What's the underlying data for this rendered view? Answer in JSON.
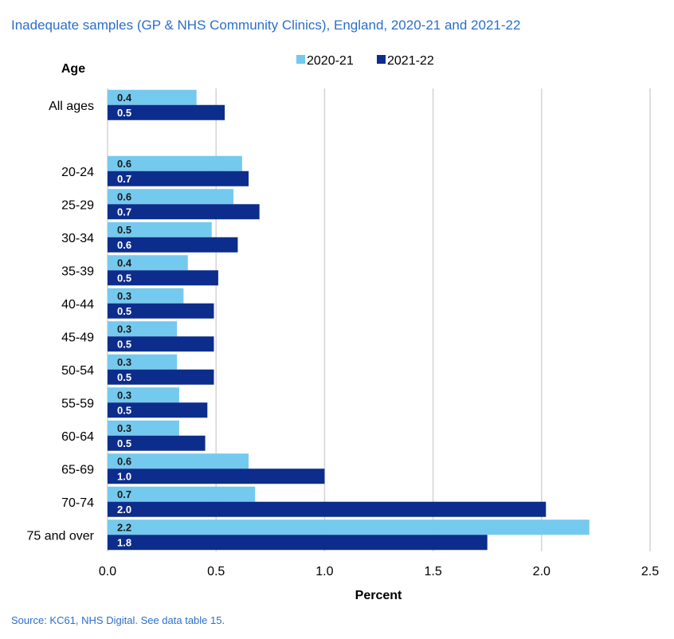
{
  "title": "Inadequate  samples (GP & NHS Community Clinics), England, 2020-21  and 2021-22",
  "source": "Source: KC61, NHS Digital. See data table 15.",
  "colors": {
    "series_2020_21": "#74c9ee",
    "series_2021_22": "#0d2d8c",
    "grid": "#d4d4d4",
    "title": "#2a6fc9"
  },
  "chart_data": {
    "type": "bar",
    "orientation": "horizontal",
    "categories": [
      "All ages",
      "",
      "20-24",
      "25-29",
      "30-34",
      "35-39",
      "40-44",
      "45-49",
      "50-54",
      "55-59",
      "60-64",
      "65-69",
      "70-74",
      "75 and over"
    ],
    "series": [
      {
        "name": "2020-21",
        "values": [
          0.41,
          null,
          0.62,
          0.58,
          0.48,
          0.37,
          0.35,
          0.32,
          0.32,
          0.33,
          0.33,
          0.65,
          0.68,
          2.22
        ],
        "labels": [
          "0.4",
          "",
          "0.6",
          "0.6",
          "0.5",
          "0.4",
          "0.3",
          "0.3",
          "0.3",
          "0.3",
          "0.3",
          "0.6",
          "0.7",
          "2.2"
        ]
      },
      {
        "name": "2021-22",
        "values": [
          0.54,
          null,
          0.65,
          0.7,
          0.6,
          0.51,
          0.49,
          0.49,
          0.49,
          0.46,
          0.45,
          1.0,
          2.02,
          1.75
        ],
        "labels": [
          "0.5",
          "",
          "0.7",
          "0.7",
          "0.6",
          "0.5",
          "0.5",
          "0.5",
          "0.5",
          "0.5",
          "0.5",
          "1.0",
          "2.0",
          "1.8"
        ]
      }
    ],
    "xlabel": "Percent",
    "ylabel": "Age",
    "xlim": [
      0,
      2.5
    ],
    "xticks": [
      "0.0",
      "0.5",
      "1.0",
      "1.5",
      "2.0",
      "2.5"
    ],
    "xtick_values": [
      0,
      0.5,
      1.0,
      1.5,
      2.0,
      2.5
    ],
    "grid": "vertical",
    "legend_position": "top"
  }
}
